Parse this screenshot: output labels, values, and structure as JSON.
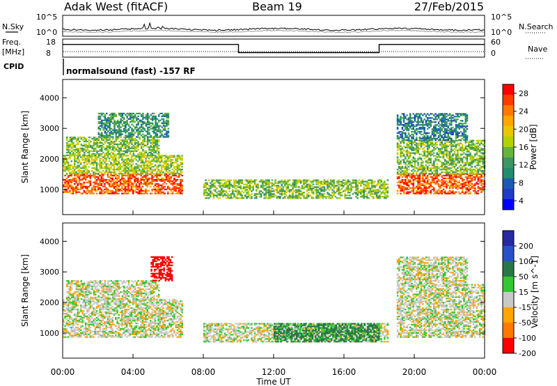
{
  "header": {
    "station": "Adak West (fitACF)",
    "beam": "Beam 19",
    "date": "27/Feb/2015"
  },
  "status_panels": {
    "sky_label": "N.Sky",
    "sky_ticks": [
      "10^5",
      "10^0"
    ],
    "search_label": "N.Search",
    "search_ticks": [
      "10^5",
      "10^0"
    ],
    "freq_label_line1": "Freq.",
    "freq_label_line2": "[MHz]",
    "freq_ticks": [
      "18",
      "8"
    ],
    "nave_label": "Nave",
    "nave_ticks": [
      "60",
      "0"
    ],
    "cpid_label": "CPID",
    "cpid_text": "normalsound (fast) -157 RF"
  },
  "time_axis": {
    "label": "Time UT",
    "ticks": [
      "00:00",
      "04:00",
      "08:00",
      "12:00",
      "16:00",
      "20:00",
      "00:00"
    ]
  },
  "power_panel": {
    "ylabel": "Slant Range [km]",
    "yticks": [
      "1000",
      "2000",
      "3000",
      "4000"
    ],
    "colorbar_label": "Power [dB]",
    "colorbar_ticks": [
      "28",
      "24",
      "20",
      "16",
      "12",
      "8",
      "4"
    ],
    "colors": [
      "#ff0000",
      "#ff3c00",
      "#ff7800",
      "#ffa500",
      "#e6c800",
      "#b4d200",
      "#64b43c",
      "#3c9664",
      "#228c6e",
      "#1e5ab4",
      "#1e3cc8",
      "#0000ff"
    ]
  },
  "velocity_panel": {
    "ylabel": "Slant Range [km]",
    "yticks": [
      "1000",
      "2000",
      "3000",
      "4000"
    ],
    "colorbar_label": "Velocity [m s^-1]",
    "colorbar_ticks": [
      "200",
      "100",
      "50",
      "15",
      "-15",
      "-50",
      "-100",
      "-200"
    ],
    "colors": [
      "#2828a0",
      "#2850c8",
      "#287846",
      "#32c832",
      "#c8c8c8",
      "#ffa500",
      "#ff7800",
      "#ff0000"
    ]
  },
  "chart_data": [
    {
      "type": "heatmap",
      "title": "Power [dB]",
      "xlabel": "Time UT",
      "ylabel": "Slant Range [km]",
      "xlim": [
        0,
        24
      ],
      "ylim": [
        180,
        4600
      ],
      "zlim": [
        0,
        30
      ],
      "echo_regions": [
        {
          "t_start": 0.0,
          "t_end": 6.8,
          "range_km": [
            850,
            1500
          ],
          "power_db": 26
        },
        {
          "t_start": 0.0,
          "t_end": 6.8,
          "range_km": [
            1500,
            2100
          ],
          "power_db": 16
        },
        {
          "t_start": 0.2,
          "t_end": 5.5,
          "range_km": [
            2100,
            2700
          ],
          "power_db": 14
        },
        {
          "t_start": 2.0,
          "t_end": 6.0,
          "range_km": [
            2700,
            3500
          ],
          "power_db": 10
        },
        {
          "t_start": 8.0,
          "t_end": 18.5,
          "range_km": [
            700,
            1300
          ],
          "power_db": 14
        },
        {
          "t_start": 19.0,
          "t_end": 24.0,
          "range_km": [
            850,
            1500
          ],
          "power_db": 26
        },
        {
          "t_start": 19.0,
          "t_end": 24.0,
          "range_km": [
            1500,
            2600
          ],
          "power_db": 14
        },
        {
          "t_start": 19.0,
          "t_end": 23.0,
          "range_km": [
            2600,
            3500
          ],
          "power_db": 8
        }
      ]
    },
    {
      "type": "heatmap",
      "title": "Velocity [m s^-1]",
      "xlabel": "Time UT",
      "ylabel": "Slant Range [km]",
      "xlim": [
        0,
        24
      ],
      "ylim": [
        180,
        4600
      ],
      "zlim": [
        -250,
        250
      ],
      "echo_regions": [
        {
          "t_start": 0.0,
          "t_end": 6.8,
          "range_km": [
            850,
            2100
          ],
          "velocity_ms": 0
        },
        {
          "t_start": 0.2,
          "t_end": 5.5,
          "range_km": [
            2100,
            2700
          ],
          "velocity_ms": 0
        },
        {
          "t_start": 5.0,
          "t_end": 6.2,
          "range_km": [
            2700,
            3500
          ],
          "velocity_ms": -100
        },
        {
          "t_start": 8.0,
          "t_end": 18.5,
          "range_km": [
            700,
            1300
          ],
          "velocity_ms": 0
        },
        {
          "t_start": 12.0,
          "t_end": 18.0,
          "range_km": [
            700,
            1300
          ],
          "velocity_ms": 40
        },
        {
          "t_start": 19.0,
          "t_end": 24.0,
          "range_km": [
            850,
            2600
          ],
          "velocity_ms": 0
        },
        {
          "t_start": 19.0,
          "t_end": 23.0,
          "range_km": [
            2600,
            3500
          ],
          "velocity_ms": 0
        }
      ]
    },
    {
      "type": "line",
      "title": "Freq. [MHz]",
      "xlabel": "Time UT",
      "ylim": [
        8,
        18
      ],
      "x": [
        0,
        10,
        10,
        18,
        18,
        24
      ],
      "values": [
        15,
        15,
        10.5,
        10.5,
        15,
        15
      ]
    }
  ]
}
